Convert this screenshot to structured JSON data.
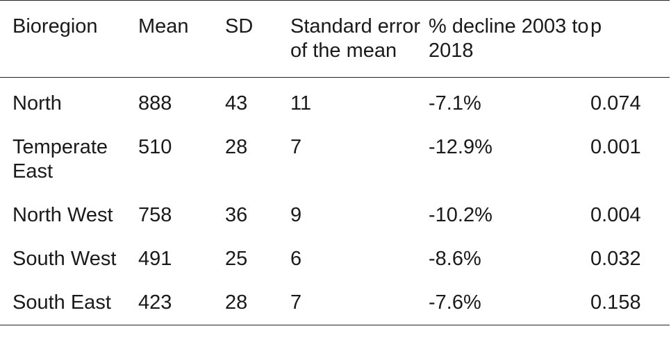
{
  "table": {
    "columns": [
      "Bioregion",
      "Mean",
      "SD",
      "Standard error of the mean",
      "% decline 2003 to 2018",
      "p"
    ],
    "rows": [
      [
        "North",
        "888",
        "43",
        "11",
        "-7.1%",
        "0.074"
      ],
      [
        "Temperate East",
        "510",
        "28",
        "7",
        "-12.9%",
        "0.001"
      ],
      [
        "North West",
        "758",
        "36",
        "9",
        "-10.2%",
        "0.004"
      ],
      [
        "South West",
        "491",
        "25",
        "6",
        "-8.6%",
        "0.032"
      ],
      [
        "South East",
        "423",
        "28",
        "7",
        "-7.6%",
        "0.158"
      ]
    ]
  }
}
